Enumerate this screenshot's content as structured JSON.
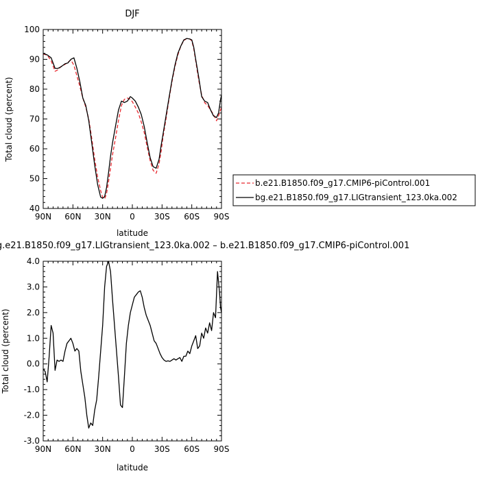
{
  "chart_data": [
    {
      "type": "line",
      "title": "DJF",
      "xlabel": "latitude",
      "ylabel": "Total cloud (percent)",
      "xlim": [
        90,
        -90
      ],
      "ylim": [
        40,
        100
      ],
      "xticks": [
        90,
        60,
        30,
        0,
        -30,
        -60,
        -90
      ],
      "xtick_labels": [
        "90N",
        "60N",
        "30N",
        "0",
        "30S",
        "60S",
        "90S"
      ],
      "yticks": [
        40,
        50,
        60,
        70,
        80,
        90,
        100
      ],
      "ytick_labels": [
        "40",
        "50",
        "60",
        "70",
        "80",
        "90",
        "100"
      ],
      "legend_placement": "right",
      "series": [
        {
          "name": "b.e21.B1850.f09_g17.CMIP6-piControl.001",
          "color": "#e8282e",
          "dash": "dashed",
          "x": [
            90,
            86,
            82,
            78,
            75,
            72,
            68,
            65,
            62,
            59,
            56,
            53,
            50,
            47,
            44,
            41,
            38,
            35,
            32,
            30,
            28,
            26,
            24,
            22,
            20,
            17,
            14,
            11,
            8,
            5,
            2,
            0,
            -3,
            -6,
            -9,
            -12,
            -15,
            -18,
            -21,
            -24,
            -27,
            -29,
            -31,
            -34,
            -37,
            -40,
            -43,
            -46,
            -49,
            -52,
            -55,
            -58,
            -60,
            -62,
            -64,
            -67,
            -70,
            -73,
            -76,
            -79,
            -82,
            -85,
            -87,
            -89,
            -90
          ],
          "values": [
            91.8,
            91.4,
            89.5,
            86.0,
            86.5,
            87.6,
            88.3,
            89.0,
            89.8,
            88.0,
            84.5,
            81.0,
            77.0,
            74.0,
            70.0,
            63.5,
            56.5,
            50.5,
            46.0,
            43.7,
            43.2,
            45.0,
            49.0,
            53.5,
            58.0,
            63.5,
            69.5,
            74.5,
            76.6,
            77.0,
            76.6,
            75.8,
            74.0,
            72.0,
            69.0,
            65.5,
            60.5,
            56.0,
            52.8,
            51.8,
            55.0,
            59.0,
            64.0,
            70.0,
            76.5,
            82.5,
            87.5,
            91.5,
            94.5,
            96.3,
            97.0,
            96.8,
            96.2,
            93.5,
            89.5,
            83.0,
            78.0,
            75.5,
            74.5,
            73.0,
            71.5,
            69.4,
            71.0,
            73.0,
            74.0
          ]
        },
        {
          "name": "bg.e21.B1850.f09_g17.LIGtransient_123.0ka.002",
          "color": "#000000",
          "dash": "solid",
          "x": [
            90,
            86,
            82,
            78,
            75,
            72,
            68,
            65,
            62,
            59,
            56,
            53,
            50,
            47,
            44,
            41,
            38,
            35,
            32,
            30,
            28,
            26,
            24,
            22,
            20,
            17,
            14,
            11,
            8,
            5,
            2,
            0,
            -3,
            -6,
            -9,
            -12,
            -15,
            -18,
            -21,
            -24,
            -27,
            -29,
            -31,
            -34,
            -37,
            -40,
            -43,
            -46,
            -49,
            -52,
            -55,
            -58,
            -60,
            -62,
            -64,
            -67,
            -70,
            -73,
            -76,
            -79,
            -82,
            -85,
            -87,
            -89,
            -90
          ],
          "values": [
            92.0,
            91.5,
            90.5,
            87.0,
            87.0,
            87.5,
            88.5,
            88.8,
            90.0,
            90.5,
            87.0,
            82.5,
            77.0,
            74.5,
            69.5,
            62.0,
            54.5,
            48.0,
            43.8,
            43.4,
            44.0,
            47.0,
            52.0,
            57.5,
            62.0,
            67.5,
            73.0,
            76.0,
            75.5,
            76.0,
            77.5,
            77.0,
            76.0,
            74.0,
            71.5,
            67.5,
            62.0,
            57.0,
            54.0,
            53.5,
            56.5,
            61.0,
            65.0,
            71.0,
            77.0,
            83.0,
            88.0,
            92.0,
            94.5,
            96.5,
            97.0,
            96.8,
            96.5,
            94.0,
            90.0,
            84.0,
            77.5,
            76.0,
            75.5,
            73.0,
            71.0,
            70.5,
            72.0,
            76.5,
            78.0
          ]
        }
      ]
    },
    {
      "type": "line",
      "title": "bg.e21.B1850.f09_g17.LIGtransient_123.0ka.002 – b.e21.B1850.f09_g17.CMIP6-piControl.001",
      "xlabel": "latitude",
      "ylabel": "Total cloud (percent)",
      "xlim": [
        90,
        -90
      ],
      "ylim": [
        -3.0,
        4.0
      ],
      "xticks": [
        90,
        60,
        30,
        0,
        -30,
        -60,
        -90
      ],
      "xtick_labels": [
        "90N",
        "60N",
        "30N",
        "0",
        "30S",
        "60S",
        "90S"
      ],
      "yticks": [
        -3.0,
        -2.0,
        -1.0,
        0.0,
        1.0,
        2.0,
        3.0,
        4.0
      ],
      "ytick_labels": [
        "-3.0",
        "-2.0",
        "-1.0",
        "0.0",
        "1.0",
        "2.0",
        "3.0",
        "4.0"
      ],
      "series": [
        {
          "color": "#000000",
          "dash": "solid",
          "x": [
            90,
            88,
            86,
            84,
            82,
            80,
            78,
            76,
            74,
            72,
            70,
            68,
            66,
            64,
            62,
            60,
            58,
            56,
            54,
            52,
            50,
            48,
            46,
            44,
            42,
            40,
            38,
            36,
            34,
            32,
            30,
            28,
            26,
            24,
            22,
            20,
            18,
            16,
            14,
            12,
            10,
            8,
            6,
            4,
            2,
            0,
            -2,
            -4,
            -6,
            -8,
            -10,
            -12,
            -14,
            -16,
            -18,
            -20,
            -22,
            -24,
            -26,
            -28,
            -30,
            -32,
            -34,
            -36,
            -38,
            -40,
            -42,
            -44,
            -46,
            -48,
            -50,
            -52,
            -54,
            -56,
            -58,
            -60,
            -62,
            -64,
            -66,
            -68,
            -70,
            -72,
            -74,
            -76,
            -78,
            -80,
            -82,
            -84,
            -86,
            -88,
            -89,
            -90
          ],
          "values": [
            -0.2,
            -0.3,
            -0.7,
            0.3,
            1.5,
            1.2,
            -0.25,
            0.15,
            0.1,
            0.15,
            0.1,
            0.5,
            0.8,
            0.9,
            1.0,
            0.8,
            0.5,
            0.6,
            0.5,
            -0.3,
            -0.8,
            -1.3,
            -2.0,
            -2.5,
            -2.3,
            -2.4,
            -1.8,
            -1.4,
            -0.5,
            0.5,
            1.5,
            3.0,
            3.8,
            4.0,
            3.6,
            2.5,
            1.5,
            0.5,
            -0.5,
            -1.6,
            -1.7,
            -0.5,
            0.8,
            1.5,
            2.0,
            2.3,
            2.6,
            2.7,
            2.8,
            2.85,
            2.6,
            2.2,
            1.9,
            1.7,
            1.5,
            1.2,
            0.9,
            0.8,
            0.6,
            0.4,
            0.25,
            0.15,
            0.1,
            0.12,
            0.1,
            0.15,
            0.2,
            0.15,
            0.2,
            0.25,
            0.1,
            0.3,
            0.3,
            0.5,
            0.4,
            0.7,
            0.9,
            1.1,
            0.6,
            0.7,
            1.2,
            1.0,
            1.4,
            1.2,
            1.6,
            1.3,
            2.0,
            1.8,
            3.6,
            2.8,
            2.2,
            2.0
          ]
        }
      ]
    }
  ]
}
